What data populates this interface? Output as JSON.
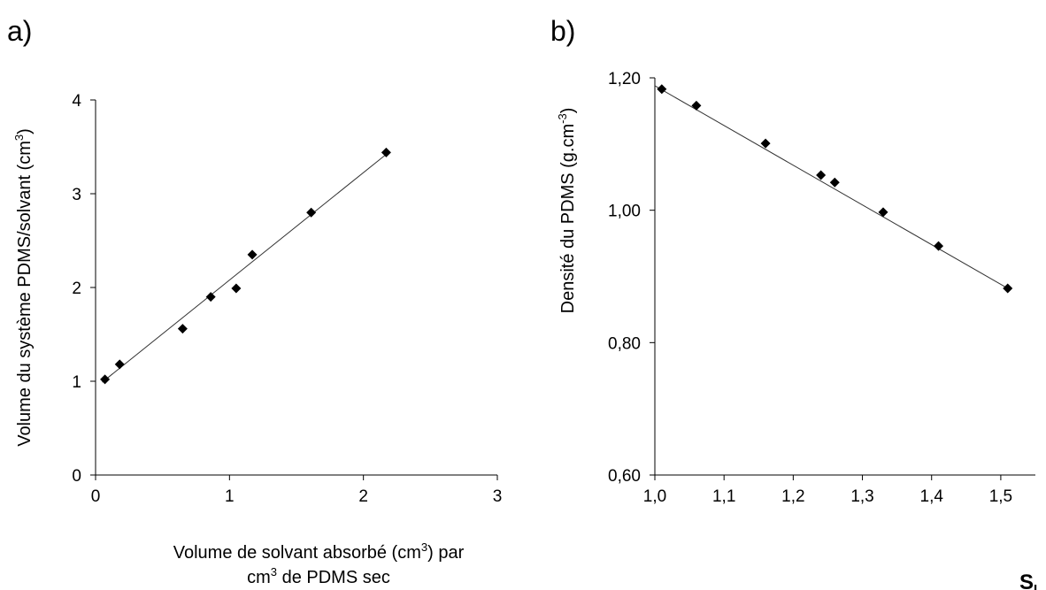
{
  "chart_data": [
    {
      "panel_label": "a)",
      "type": "scatter",
      "xlabel_line1_pre": "Volume de solvant absorbé (cm",
      "xlabel_line1_sup": "3",
      "xlabel_line1_post": ") par",
      "xlabel_line2_pre": "cm",
      "xlabel_line2_sup": "3",
      "xlabel_line2_post": " de PDMS sec",
      "ylabel_pre": "Volume du système PDMS/solvant (cm",
      "ylabel_sup": "3",
      "ylabel_post": ")",
      "xlim": [
        0,
        3
      ],
      "ylim": [
        0,
        4
      ],
      "xticks": [
        "0",
        "1",
        "2",
        "3"
      ],
      "yticks": [
        "0",
        "1",
        "2",
        "3",
        "4"
      ],
      "x": [
        0.07,
        0.18,
        0.65,
        0.86,
        1.05,
        1.17,
        1.61,
        2.17
      ],
      "y": [
        1.02,
        1.18,
        1.56,
        1.9,
        1.99,
        2.35,
        2.8,
        3.44
      ],
      "trendline": {
        "x": [
          0.05,
          2.17
        ],
        "y": [
          0.99,
          3.42
        ]
      },
      "grid": false,
      "marker": "diamond",
      "color": "#000000"
    },
    {
      "panel_label": "b)",
      "type": "scatter",
      "xlabel_main": "S",
      "xlabel_sub": "L",
      "ylabel_pre": "Densité du PDMS (g.cm",
      "ylabel_sup": "-3",
      "ylabel_post": ")",
      "xlim": [
        1.0,
        1.55
      ],
      "ylim": [
        0.6,
        1.2
      ],
      "xticks": [
        "1,0",
        "1,1",
        "1,2",
        "1,3",
        "1,4",
        "1,5"
      ],
      "xtick_values": [
        1.0,
        1.1,
        1.2,
        1.3,
        1.4,
        1.5
      ],
      "yticks": [
        "0,60",
        "0,80",
        "1,00",
        "1,20"
      ],
      "ytick_values": [
        0.6,
        0.8,
        1.0,
        1.2
      ],
      "x": [
        1.01,
        1.06,
        1.16,
        1.24,
        1.26,
        1.33,
        1.41,
        1.51
      ],
      "y": [
        1.183,
        1.158,
        1.101,
        1.053,
        1.042,
        0.997,
        0.946,
        0.882
      ],
      "trendline": {
        "x": [
          1.0,
          1.51
        ],
        "y": [
          1.188,
          0.882
        ]
      },
      "grid": false,
      "marker": "diamond",
      "color": "#000000"
    }
  ]
}
